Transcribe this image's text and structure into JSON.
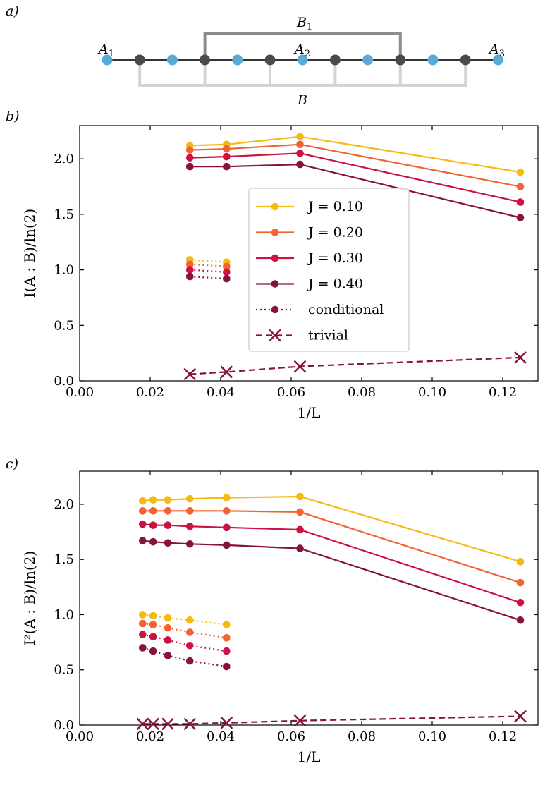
{
  "diagram": {
    "panel_label": "a)",
    "labels": {
      "A1": "A",
      "A1_sub": "1",
      "A2": "A",
      "A2_sub": "2",
      "A3": "A",
      "A3_sub": "3",
      "B1": "B",
      "B1_sub": "1",
      "B": "B"
    },
    "sites": [
      "A",
      "B",
      "A",
      "B",
      "A",
      "B",
      "A",
      "B",
      "A",
      "B",
      "A",
      "B",
      "A"
    ],
    "colors": {
      "a_site": "#5aa9d6",
      "b_site": "#4a4a4a",
      "chain": "#333333",
      "b1_bracket": "#8c8c8c",
      "b_bracket": "#d4d4d4"
    }
  },
  "chart_data": [
    {
      "type": "line",
      "panel_label": "b)",
      "xlabel": "1/L",
      "ylabel": "I(A : B)/ln(2)",
      "xlim": [
        0.0,
        0.13
      ],
      "ylim": [
        0.0,
        2.3
      ],
      "xticks": [
        "0.00",
        "0.02",
        "0.04",
        "0.06",
        "0.08",
        "0.10",
        "0.12"
      ],
      "yticks": [
        "0.0",
        "0.5",
        "1.0",
        "1.5",
        "2.0"
      ],
      "legend": {
        "placement": "center",
        "entries": [
          {
            "label": "J = 0.10",
            "style": "solid-marker",
            "color": "#f5b914"
          },
          {
            "label": "J = 0.20",
            "style": "solid-marker",
            "color": "#f26333"
          },
          {
            "label": "J = 0.30",
            "style": "solid-marker",
            "color": "#cc1143"
          },
          {
            "label": "J = 0.40",
            "style": "solid-marker",
            "color": "#86123e"
          },
          {
            "label": "conditional",
            "style": "dotted-marker",
            "color": "#86123e"
          },
          {
            "label": "trivial",
            "style": "dashed-x",
            "color": "#86123e"
          }
        ]
      },
      "series": [
        {
          "name": "J = 0.10",
          "color": "#f5b914",
          "style": "solid",
          "x": [
            0.03125,
            0.041667,
            0.0625,
            0.125
          ],
          "y": [
            2.12,
            2.13,
            2.2,
            1.88
          ]
        },
        {
          "name": "J = 0.20",
          "color": "#f26333",
          "style": "solid",
          "x": [
            0.03125,
            0.041667,
            0.0625,
            0.125
          ],
          "y": [
            2.08,
            2.09,
            2.13,
            1.75
          ]
        },
        {
          "name": "J = 0.30",
          "color": "#cc1143",
          "style": "solid",
          "x": [
            0.03125,
            0.041667,
            0.0625,
            0.125
          ],
          "y": [
            2.01,
            2.02,
            2.05,
            1.61
          ]
        },
        {
          "name": "J = 0.40",
          "color": "#86123e",
          "style": "solid",
          "x": [
            0.03125,
            0.041667,
            0.0625,
            0.125
          ],
          "y": [
            1.93,
            1.93,
            1.95,
            1.47
          ]
        },
        {
          "name": "conditional J = 0.10",
          "color": "#f5b914",
          "style": "dotted",
          "x": [
            0.03125,
            0.041667
          ],
          "y": [
            1.09,
            1.07
          ]
        },
        {
          "name": "conditional J = 0.20",
          "color": "#f26333",
          "style": "dotted",
          "x": [
            0.03125,
            0.041667
          ],
          "y": [
            1.05,
            1.03
          ]
        },
        {
          "name": "conditional J = 0.30",
          "color": "#cc1143",
          "style": "dotted",
          "x": [
            0.03125,
            0.041667
          ],
          "y": [
            1.0,
            0.98
          ]
        },
        {
          "name": "conditional J = 0.40",
          "color": "#86123e",
          "style": "dotted",
          "x": [
            0.03125,
            0.041667
          ],
          "y": [
            0.94,
            0.92
          ]
        },
        {
          "name": "trivial",
          "color": "#86123e",
          "style": "dashed-x",
          "x": [
            0.03125,
            0.041667,
            0.0625,
            0.125
          ],
          "y": [
            0.06,
            0.08,
            0.13,
            0.21
          ]
        }
      ]
    },
    {
      "type": "line",
      "panel_label": "c)",
      "xlabel": "1/L",
      "ylabel": "I²(A : B)/ln(2)",
      "xlim": [
        0.0,
        0.13
      ],
      "ylim": [
        0.0,
        2.3
      ],
      "xticks": [
        "0.00",
        "0.02",
        "0.04",
        "0.06",
        "0.08",
        "0.10",
        "0.12"
      ],
      "yticks": [
        "0.0",
        "0.5",
        "1.0",
        "1.5",
        "2.0"
      ],
      "series": [
        {
          "name": "J = 0.10",
          "color": "#f5b914",
          "style": "solid",
          "x": [
            0.017857,
            0.020833,
            0.025,
            0.03125,
            0.041667,
            0.0625,
            0.125
          ],
          "y": [
            2.03,
            2.04,
            2.04,
            2.05,
            2.06,
            2.07,
            1.48
          ]
        },
        {
          "name": "J = 0.20",
          "color": "#f26333",
          "style": "solid",
          "x": [
            0.017857,
            0.020833,
            0.025,
            0.03125,
            0.041667,
            0.0625,
            0.125
          ],
          "y": [
            1.94,
            1.94,
            1.94,
            1.94,
            1.94,
            1.93,
            1.29
          ]
        },
        {
          "name": "J = 0.30",
          "color": "#cc1143",
          "style": "solid",
          "x": [
            0.017857,
            0.020833,
            0.025,
            0.03125,
            0.041667,
            0.0625,
            0.125
          ],
          "y": [
            1.82,
            1.81,
            1.81,
            1.8,
            1.79,
            1.77,
            1.11
          ]
        },
        {
          "name": "J = 0.40",
          "color": "#86123e",
          "style": "solid",
          "x": [
            0.017857,
            0.020833,
            0.025,
            0.03125,
            0.041667,
            0.0625,
            0.125
          ],
          "y": [
            1.67,
            1.66,
            1.65,
            1.64,
            1.63,
            1.6,
            0.95
          ]
        },
        {
          "name": "conditional J = 0.10",
          "color": "#f5b914",
          "style": "dotted",
          "x": [
            0.017857,
            0.020833,
            0.025,
            0.03125,
            0.041667
          ],
          "y": [
            1.0,
            0.99,
            0.97,
            0.95,
            0.91
          ]
        },
        {
          "name": "conditional J = 0.20",
          "color": "#f26333",
          "style": "dotted",
          "x": [
            0.017857,
            0.020833,
            0.025,
            0.03125,
            0.041667
          ],
          "y": [
            0.92,
            0.91,
            0.88,
            0.84,
            0.79
          ]
        },
        {
          "name": "conditional J = 0.30",
          "color": "#cc1143",
          "style": "dotted",
          "x": [
            0.017857,
            0.020833,
            0.025,
            0.03125,
            0.041667
          ],
          "y": [
            0.82,
            0.8,
            0.77,
            0.72,
            0.67
          ]
        },
        {
          "name": "conditional J = 0.40",
          "color": "#86123e",
          "style": "dotted",
          "x": [
            0.017857,
            0.020833,
            0.025,
            0.03125,
            0.041667
          ],
          "y": [
            0.7,
            0.67,
            0.63,
            0.58,
            0.53
          ]
        },
        {
          "name": "trivial",
          "color": "#86123e",
          "style": "dashed-x",
          "x": [
            0.017857,
            0.020833,
            0.025,
            0.03125,
            0.041667,
            0.0625,
            0.125
          ],
          "y": [
            0.01,
            0.01,
            0.01,
            0.01,
            0.02,
            0.04,
            0.08
          ]
        }
      ]
    }
  ]
}
